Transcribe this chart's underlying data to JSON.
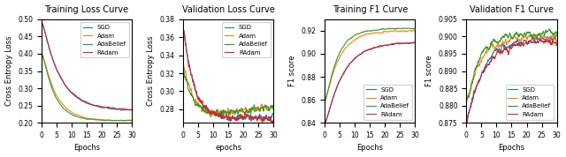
{
  "title1": "Training Loss Curve",
  "title2": "Validation Loss Curve",
  "title3": "Training F1 Curve",
  "title4": "Validation F1 Curve",
  "ylabel1": "Cross Entropy Loss",
  "ylabel2": "Cross Entropy Loss",
  "ylabel3": "F1 score",
  "ylabel4": "F1 score",
  "xlabel1": "Epochs",
  "xlabel2": "epochs",
  "xlabel3": "Epochs",
  "xlabel4": "Epochs",
  "colors": {
    "SGD": "#1f77b4",
    "Adam": "#ff7f0e",
    "AdaBelief": "#2ca02c",
    "RAdam": "#d62728"
  },
  "train_loss_ylim": [
    0.2,
    0.5
  ],
  "val_loss_ylim": [
    0.265,
    0.38
  ],
  "train_f1_ylim": [
    0.84,
    0.93
  ],
  "val_f1_ylim": [
    0.875,
    0.905
  ]
}
